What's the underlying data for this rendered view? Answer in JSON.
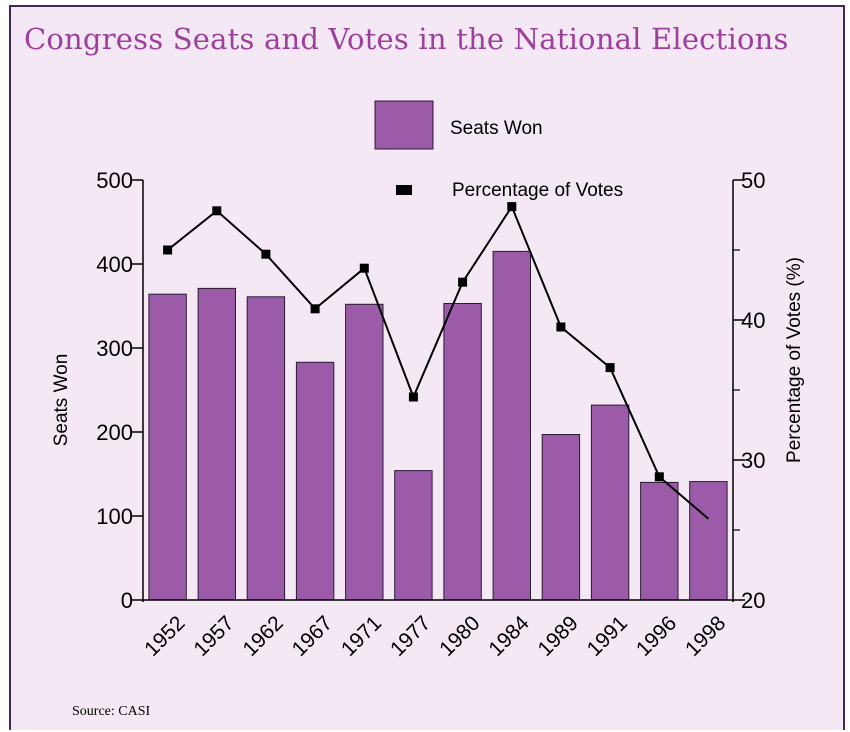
{
  "chart_data": {
    "type": "bar+line",
    "title": "Congress Seats and Votes in the National Elections",
    "categories": [
      "1952",
      "1957",
      "1962",
      "1967",
      "1971",
      "1977",
      "1980",
      "1984",
      "1989",
      "1991",
      "1996",
      "1998"
    ],
    "series": [
      {
        "name": "Seats Won",
        "type": "bar",
        "axis": "left",
        "values": [
          364,
          371,
          361,
          283,
          352,
          154,
          353,
          415,
          197,
          232,
          140,
          141
        ]
      },
      {
        "name": "Percentage of Votes",
        "type": "line",
        "axis": "right",
        "values": [
          45.0,
          47.8,
          44.7,
          40.8,
          43.7,
          34.5,
          42.7,
          48.1,
          39.5,
          36.6,
          28.8,
          25.8
        ]
      }
    ],
    "y_left": {
      "label": "Seats Won",
      "range": [
        0,
        500
      ],
      "ticks": [
        0,
        100,
        200,
        300,
        400,
        500
      ]
    },
    "y_right": {
      "label": "Percentage of Votes (%)",
      "range": [
        20,
        50
      ],
      "ticks": [
        20,
        30,
        40,
        50
      ]
    },
    "legend": {
      "placement": "top-center"
    },
    "colors": {
      "bar": "#9b5ba8",
      "bar_stroke": "#2b1a33",
      "line": "#000000",
      "title": "#9e3f9e",
      "background": "#f3e8f3"
    }
  },
  "source_note": "Source: CASI"
}
